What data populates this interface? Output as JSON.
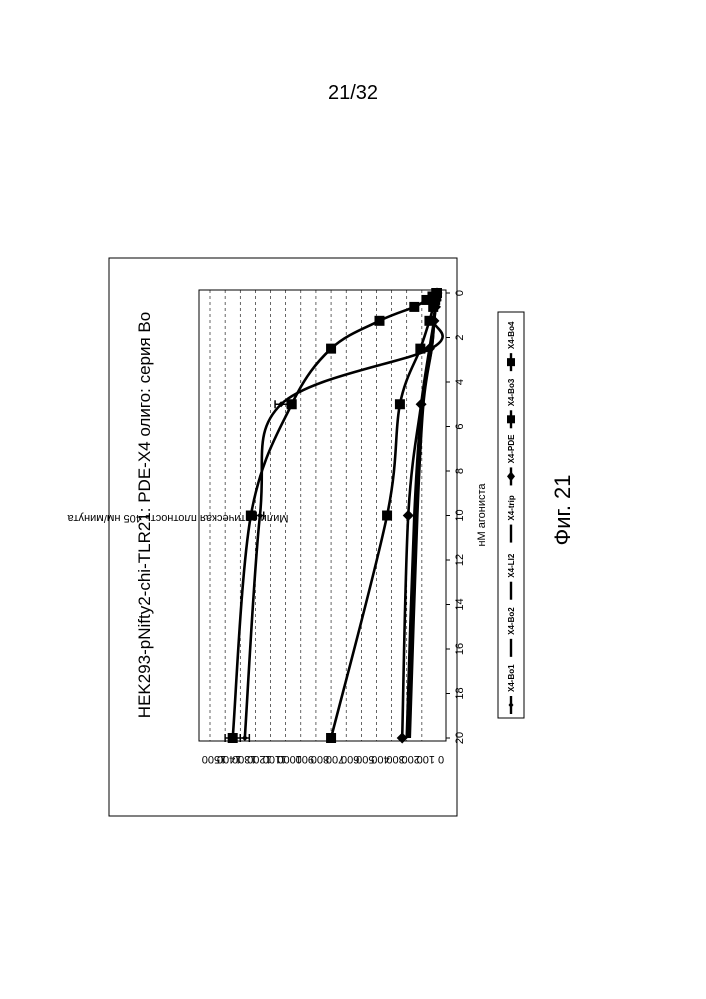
{
  "page": {
    "number": "21/32",
    "caption": "Фиг. 21"
  },
  "chart_data": {
    "type": "line",
    "title": "HEK293-pNifty2-chi-TLR21: PDE-X4 олиго: серия Bo",
    "xlabel": "нМ агониста",
    "ylabel": "Мили оптическая плотность 405 нм/минута",
    "xlim": [
      0,
      20
    ],
    "ylim": [
      0,
      1500
    ],
    "x_ticks": [
      "0",
      "2",
      "4",
      "6",
      "8",
      "10",
      "12",
      "14",
      "16",
      "18",
      "20"
    ],
    "y_ticks": [
      "0",
      "100",
      "200",
      "300",
      "400",
      "500",
      "600",
      "700",
      "800",
      "900",
      "1000",
      "1100",
      "1200",
      "1300",
      "1400",
      "1500"
    ],
    "grid": "horizontal dashed",
    "legend_position": "bottom",
    "series": [
      {
        "name": "X4-Bo1",
        "marker": "diamond-small",
        "points": [
          [
            0,
            0
          ],
          [
            0.156,
            2
          ],
          [
            0.3125,
            5
          ],
          [
            0.625,
            10
          ],
          [
            1.25,
            25
          ],
          [
            2.5,
            40
          ],
          [
            5,
            1030
          ],
          [
            10,
            1170
          ],
          [
            20,
            1270
          ]
        ],
        "errors": [
          0,
          0,
          0,
          0,
          0,
          0,
          40,
          25,
          30
        ]
      },
      {
        "name": "X4-Bo2",
        "marker": "none",
        "points": [
          [
            0,
            0
          ],
          [
            0.156,
            2
          ],
          [
            0.3125,
            5
          ],
          [
            0.625,
            10
          ],
          [
            1.25,
            20
          ],
          [
            2.5,
            35
          ],
          [
            5,
            100
          ],
          [
            10,
            150
          ],
          [
            20,
            200
          ]
        ],
        "errors": [
          0,
          0,
          0,
          0,
          0,
          0,
          0,
          0,
          0
        ]
      },
      {
        "name": "X4-LI2",
        "marker": "none",
        "points": [
          [
            0,
            0
          ],
          [
            0.156,
            2
          ],
          [
            0.3125,
            5
          ],
          [
            0.625,
            10
          ],
          [
            1.25,
            20
          ],
          [
            2.5,
            40
          ],
          [
            5,
            95
          ],
          [
            10,
            140
          ],
          [
            20,
            190
          ]
        ],
        "errors": [
          0,
          0,
          0,
          0,
          0,
          0,
          0,
          0,
          0
        ]
      },
      {
        "name": "X4-trip",
        "marker": "none",
        "points": [
          [
            0,
            0
          ],
          [
            0.156,
            2
          ],
          [
            0.3125,
            4
          ],
          [
            0.625,
            8
          ],
          [
            1.25,
            18
          ],
          [
            2.5,
            35
          ],
          [
            5,
            90
          ],
          [
            10,
            130
          ],
          [
            20,
            180
          ]
        ],
        "errors": [
          0,
          0,
          0,
          0,
          0,
          0,
          0,
          0,
          0
        ]
      },
      {
        "name": "X4-PDE",
        "marker": "diamond",
        "points": [
          [
            0,
            0
          ],
          [
            0.156,
            2
          ],
          [
            0.3125,
            5
          ],
          [
            0.625,
            10
          ],
          [
            1.25,
            20
          ],
          [
            2.5,
            50
          ],
          [
            5,
            105
          ],
          [
            10,
            190
          ],
          [
            20,
            230
          ]
        ],
        "errors": [
          0,
          0,
          0,
          0,
          0,
          0,
          0,
          0,
          0
        ]
      },
      {
        "name": "X4-Bo3",
        "marker": "square",
        "points": [
          [
            0,
            0
          ],
          [
            0.156,
            5
          ],
          [
            0.3125,
            12
          ],
          [
            0.625,
            25
          ],
          [
            1.25,
            50
          ],
          [
            2.5,
            110
          ],
          [
            5,
            245
          ],
          [
            10,
            330
          ],
          [
            20,
            700
          ]
        ],
        "errors": [
          0,
          0,
          0,
          0,
          0,
          0,
          0,
          0,
          0
        ]
      },
      {
        "name": "X4-Bo4",
        "marker": "square",
        "points": [
          [
            0,
            5
          ],
          [
            0.156,
            30
          ],
          [
            0.3125,
            70
          ],
          [
            0.625,
            150
          ],
          [
            1.25,
            380
          ],
          [
            2.5,
            700
          ],
          [
            5,
            960
          ],
          [
            10,
            1230
          ],
          [
            20,
            1350
          ]
        ],
        "errors": [
          0,
          0,
          0,
          0,
          0,
          0,
          0,
          0,
          50
        ]
      }
    ]
  }
}
